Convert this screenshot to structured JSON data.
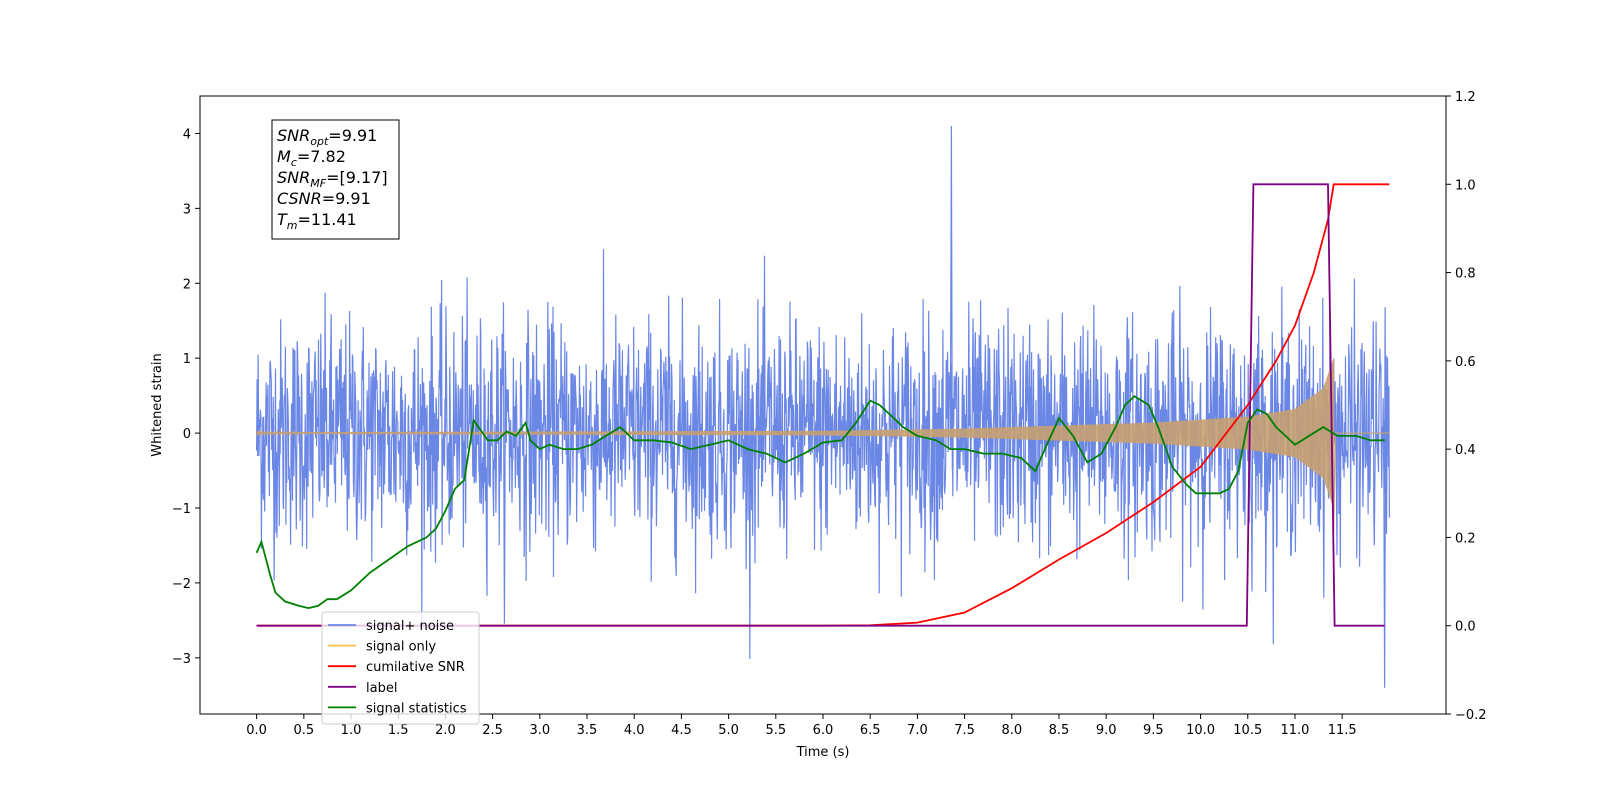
{
  "chart_data": {
    "type": "line",
    "xlabel": "Time (s)",
    "ylabel": "Whitened strain",
    "xlim": [
      -0.6,
      12.6
    ],
    "ylim_left": [
      -3.75,
      4.5
    ],
    "ylim_right": [
      -0.2,
      1.2
    ],
    "x_ticks": [
      0.0,
      0.5,
      1.0,
      1.5,
      2.0,
      2.5,
      3.0,
      3.5,
      4.0,
      4.5,
      5.0,
      5.5,
      6.0,
      6.5,
      7.0,
      7.5,
      8.0,
      8.5,
      9.0,
      9.5,
      10.0,
      10.5,
      11.0,
      11.5
    ],
    "x_tick_labels": [
      "0.0",
      "0.5",
      "1.0",
      "1.5",
      "2.0",
      "2.5",
      "3.0",
      "3.5",
      "4.0",
      "4.5",
      "5.0",
      "5.5",
      "6.0",
      "6.5",
      "7.0",
      "7.5",
      "8.0",
      "8.5",
      "9.0",
      "9.5",
      "10.0",
      "10.5",
      "11.0",
      "11.5"
    ],
    "y_left_ticks": [
      -3,
      -2,
      -1,
      0,
      1,
      2,
      3,
      4
    ],
    "y_left_tick_labels": [
      "−3",
      "−2",
      "−1",
      "0",
      "1",
      "2",
      "3",
      "4"
    ],
    "y_right_ticks": [
      -0.2,
      0.0,
      0.2,
      0.4,
      0.6,
      0.8,
      1.0,
      1.2
    ],
    "y_right_tick_labels": [
      "−0.2",
      "0.0",
      "0.2",
      "0.4",
      "0.6",
      "0.8",
      "1.0",
      "1.2"
    ],
    "info_box": [
      {
        "base": "SNR",
        "sub": "opt",
        "rest": "=9.91"
      },
      {
        "base": "M",
        "sub": "c",
        "rest": "=7.82"
      },
      {
        "base": "SNR",
        "sub": "MF",
        "rest": "=[9.17]"
      },
      {
        "base": "CSNR",
        "sub": "",
        "rest": "=9.91"
      },
      {
        "base": "T",
        "sub": "m",
        "rest": "=11.41"
      }
    ],
    "legend": [
      {
        "label": "signal+ noise",
        "color": "#6b87e6"
      },
      {
        "label": "signal only",
        "color": "#ffc04d"
      },
      {
        "label": "cumilative SNR",
        "color": "#ff0000"
      },
      {
        "label": "label",
        "color": "#800080"
      },
      {
        "label": "signal statistics",
        "color": "#008000"
      }
    ],
    "series": [
      {
        "name": "signal+ noise",
        "axis": "left",
        "color": "#6b87e6",
        "x_range": [
          0.0,
          12.0
        ],
        "envelope": "gaussian noise, typical extent about ±2, peaks reaching 4.1 near t=7.35 and −3.4 near t=11.95"
      },
      {
        "name": "signal only",
        "axis": "left",
        "color": "#ffc04d",
        "x_range": [
          0.0,
          11.41
        ],
        "chirp_envelope": {
          "x": [
            0.0,
            6.0,
            7.5,
            8.5,
            9.5,
            10.5,
            11.0,
            11.3,
            11.41
          ],
          "amp": [
            0.01,
            0.03,
            0.06,
            0.1,
            0.14,
            0.22,
            0.32,
            0.6,
            1.0
          ]
        }
      },
      {
        "name": "cumilative SNR",
        "axis": "right",
        "color": "#ff0000",
        "x": [
          0.0,
          6.0,
          6.5,
          7.0,
          7.5,
          8.0,
          8.5,
          9.0,
          9.5,
          10.0,
          10.5,
          10.8,
          11.0,
          11.2,
          11.35,
          11.41,
          12.0
        ],
        "values": [
          0.0,
          0.0,
          0.001,
          0.007,
          0.03,
          0.085,
          0.15,
          0.21,
          0.28,
          0.36,
          0.5,
          0.6,
          0.68,
          0.8,
          0.92,
          1.0,
          1.0
        ]
      },
      {
        "name": "label",
        "axis": "right",
        "color": "#800080",
        "x": [
          0.0,
          10.49,
          10.56,
          11.35,
          11.42,
          11.95
        ],
        "values": [
          0.0,
          0.0,
          1.0,
          1.0,
          0.0,
          0.0
        ]
      },
      {
        "name": "signal statistics",
        "axis": "right",
        "color": "#008000",
        "x": [
          0.0,
          0.05,
          0.1,
          0.15,
          0.2,
          0.3,
          0.45,
          0.55,
          0.65,
          0.75,
          0.85,
          1.0,
          1.2,
          1.4,
          1.6,
          1.8,
          1.9,
          2.0,
          2.1,
          2.2,
          2.3,
          2.35,
          2.45,
          2.55,
          2.65,
          2.75,
          2.85,
          2.9,
          3.0,
          3.1,
          3.25,
          3.4,
          3.55,
          3.7,
          3.85,
          4.0,
          4.2,
          4.4,
          4.6,
          4.8,
          5.0,
          5.2,
          5.4,
          5.6,
          5.8,
          6.0,
          6.2,
          6.35,
          6.5,
          6.6,
          6.75,
          6.85,
          7.0,
          7.2,
          7.35,
          7.5,
          7.7,
          7.9,
          8.1,
          8.25,
          8.35,
          8.5,
          8.65,
          8.8,
          8.95,
          9.1,
          9.2,
          9.3,
          9.45,
          9.55,
          9.7,
          9.85,
          9.95,
          10.1,
          10.2,
          10.3,
          10.4,
          10.5,
          10.6,
          10.7,
          10.8,
          10.9,
          11.0,
          11.15,
          11.3,
          11.45,
          11.55,
          11.65,
          11.8,
          11.95
        ],
        "values": [
          0.165,
          0.19,
          0.15,
          0.11,
          0.075,
          0.055,
          0.045,
          0.04,
          0.045,
          0.06,
          0.06,
          0.08,
          0.12,
          0.15,
          0.18,
          0.2,
          0.22,
          0.26,
          0.31,
          0.33,
          0.465,
          0.45,
          0.42,
          0.42,
          0.44,
          0.43,
          0.46,
          0.42,
          0.4,
          0.41,
          0.4,
          0.4,
          0.41,
          0.43,
          0.45,
          0.42,
          0.42,
          0.415,
          0.4,
          0.41,
          0.42,
          0.4,
          0.39,
          0.37,
          0.39,
          0.415,
          0.42,
          0.46,
          0.51,
          0.5,
          0.47,
          0.45,
          0.43,
          0.42,
          0.4,
          0.4,
          0.39,
          0.39,
          0.38,
          0.35,
          0.4,
          0.47,
          0.43,
          0.37,
          0.39,
          0.45,
          0.5,
          0.52,
          0.5,
          0.45,
          0.36,
          0.32,
          0.3,
          0.3,
          0.3,
          0.31,
          0.35,
          0.46,
          0.49,
          0.48,
          0.45,
          0.43,
          0.41,
          0.43,
          0.45,
          0.43,
          0.43,
          0.43,
          0.42,
          0.42
        ]
      }
    ]
  }
}
